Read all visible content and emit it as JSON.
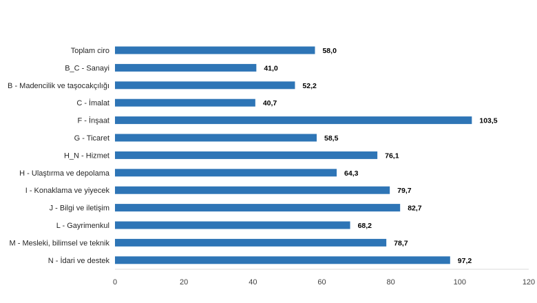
{
  "chart_data": {
    "type": "bar",
    "orientation": "horizontal",
    "categories": [
      "Toplam ciro",
      "B_C - Sanayi",
      "B - Madencilik ve taşocakçılığı",
      "C - İmalat",
      "F - İnşaat",
      "G - Ticaret",
      "H_N - Hizmet",
      "H - Ulaştırma ve depolama",
      "I - Konaklama ve yiyecek",
      "J - Bilgi ve iletişim",
      "L - Gayrimenkul",
      "M - Mesleki, bilimsel ve teknik",
      "N - İdari ve destek"
    ],
    "values": [
      58.0,
      41.0,
      52.2,
      40.7,
      103.5,
      58.5,
      76.1,
      64.3,
      79.7,
      82.7,
      68.2,
      78.7,
      97.2
    ],
    "value_labels": [
      "58,0",
      "41,0",
      "52,2",
      "40,7",
      "103,5",
      "58,5",
      "76,1",
      "64,3",
      "79,7",
      "82,7",
      "68,2",
      "78,7",
      "97,2"
    ],
    "xlim": [
      0,
      120
    ],
    "xticks": [
      "0",
      "20",
      "40",
      "60",
      "80",
      "100",
      "120"
    ],
    "grid": false,
    "bar_color": "#2e75b6",
    "axis_color": "#d9d9d9"
  }
}
